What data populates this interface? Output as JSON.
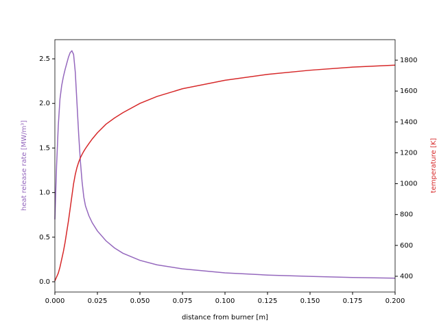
{
  "chart_data": {
    "type": "line",
    "x_label": "distance from burner [m]",
    "y_label": "heat release rate [MW/m³]",
    "y2_label": "temperature [K]",
    "x": [
      0,
      0.001,
      0.002,
      0.003,
      0.004,
      0.005,
      0.006,
      0.007,
      0.008,
      0.009,
      0.01,
      0.011,
      0.012,
      0.013,
      0.014,
      0.015,
      0.016,
      0.017,
      0.018,
      0.02,
      0.022,
      0.025,
      0.03,
      0.035,
      0.04,
      0.05,
      0.06,
      0.075,
      0.1,
      0.125,
      0.15,
      0.175,
      0.2
    ],
    "series": [
      {
        "name": "heat release rate",
        "color": "#9467bd",
        "values": [
          0.7,
          1.3,
          1.75,
          2.05,
          2.2,
          2.3,
          2.38,
          2.45,
          2.52,
          2.57,
          2.59,
          2.55,
          2.35,
          2.0,
          1.65,
          1.35,
          1.12,
          0.95,
          0.85,
          0.74,
          0.66,
          0.57,
          0.46,
          0.38,
          0.32,
          0.24,
          0.19,
          0.145,
          0.1,
          0.075,
          0.06,
          0.048,
          0.04
        ]
      },
      {
        "name": "temperature",
        "color": "#d62728",
        "axis": "y2",
        "values": [
          370,
          395,
          420,
          460,
          510,
          560,
          620,
          690,
          760,
          840,
          920,
          1000,
          1060,
          1105,
          1140,
          1168,
          1190,
          1210,
          1228,
          1260,
          1290,
          1330,
          1385,
          1425,
          1460,
          1520,
          1565,
          1615,
          1670,
          1708,
          1735,
          1755,
          1768
        ]
      }
    ],
    "xlim": [
      0,
      0.2
    ],
    "xticks": [
      {
        "value": 0,
        "label": "0.000"
      },
      0.025,
      {
        "value": 0.05,
        "label": "0.050"
      },
      0.075,
      {
        "value": 0.1,
        "label": "0.100"
      },
      0.125,
      {
        "value": 0.15,
        "label": "0.150"
      },
      0.175,
      {
        "value": 0.2,
        "label": "0.200"
      }
    ],
    "ylim": [
      -0.115,
      2.715
    ],
    "yticks": [
      {
        "value": 0,
        "label": "0.0"
      },
      0.5,
      {
        "value": 1,
        "label": "1.0"
      },
      1.5,
      {
        "value": 2,
        "label": "2.0"
      },
      2.5
    ],
    "y2lim": [
      298,
      1933
    ],
    "y2ticks": [
      400,
      600,
      800,
      1000,
      1200,
      1400,
      1600,
      1800
    ]
  }
}
